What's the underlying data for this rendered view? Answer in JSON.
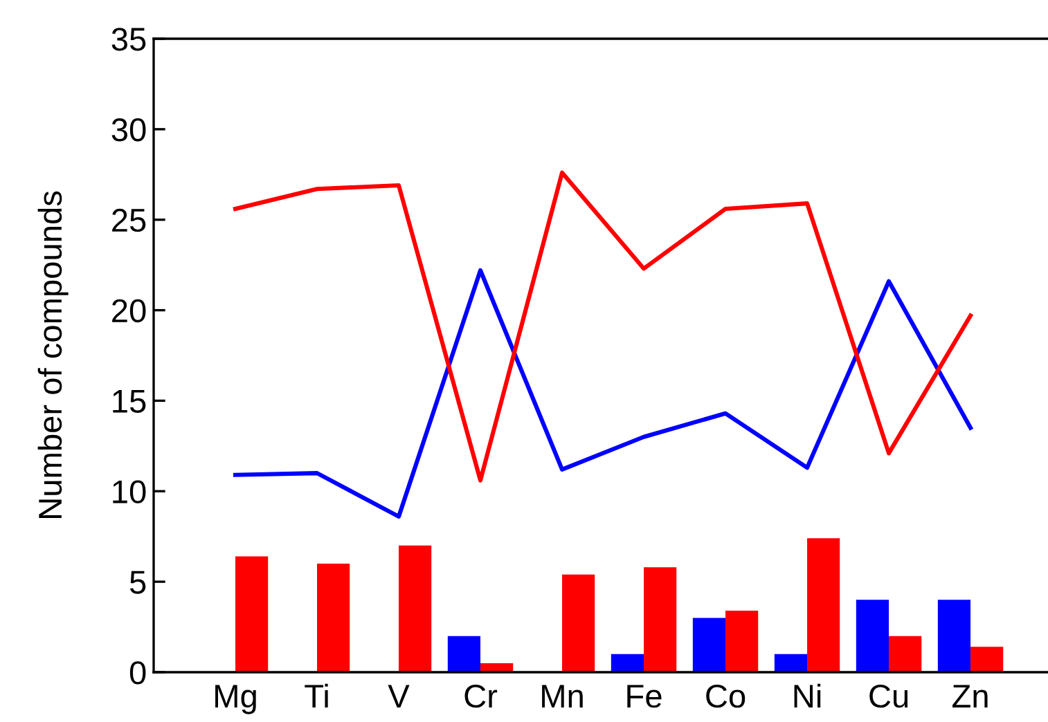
{
  "chart_data": {
    "type": "bar",
    "ylabel": "Number of compounds",
    "categories": [
      "Mg",
      "Ti",
      "V",
      "Cr",
      "Mn",
      "Fe",
      "Co",
      "Ni",
      "Cu",
      "Zn"
    ],
    "series": [
      {
        "color": "#0000ff",
        "values": [
          0,
          0,
          0,
          2.0,
          0,
          1.0,
          3.0,
          1.0,
          4.0,
          4.0
        ]
      },
      {
        "color": "#ff0000",
        "values": [
          6.4,
          6.0,
          7.0,
          0.5,
          5.4,
          5.8,
          3.4,
          7.4,
          2.0,
          1.4
        ]
      },
      {
        "type": "line",
        "color": "#0000ff",
        "values": [
          10.9,
          11.0,
          8.6,
          22.2,
          11.2,
          13.0,
          14.3,
          11.3,
          21.6,
          13.5
        ]
      },
      {
        "type": "line",
        "color": "#ff0000",
        "values": [
          25.6,
          26.7,
          26.9,
          10.6,
          27.6,
          22.3,
          25.6,
          25.9,
          12.1,
          19.7
        ]
      }
    ],
    "ylim": [
      0,
      35
    ],
    "yticks": [
      0,
      5,
      10,
      15,
      20,
      25,
      30,
      35
    ],
    "grid": false,
    "legend": false,
    "marker": "none",
    "line_style": "solid"
  }
}
